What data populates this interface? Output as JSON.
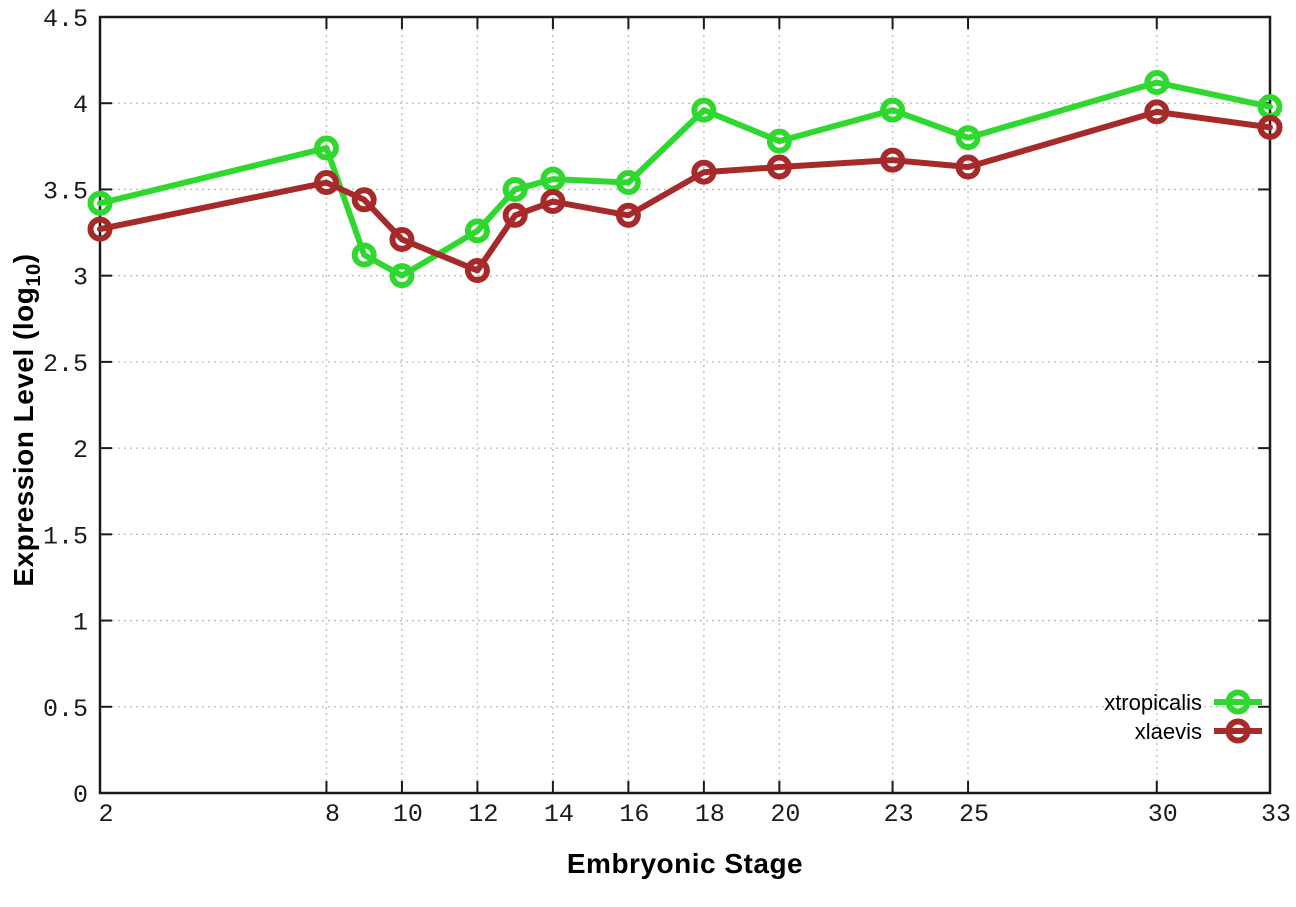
{
  "figure": {
    "background": "#ffffff",
    "border_color": "#1a1a1a",
    "grid_color": "#bcbcbc",
    "tick_label_color": "#1a1a1a"
  },
  "chart_data": {
    "type": "line",
    "title": "",
    "xlabel": "Embryonic Stage",
    "ylabel": "Expression Level (log10)",
    "ylabel_parts": {
      "pre": "Expression Level (log",
      "sub": "10",
      "post": ")"
    },
    "x": [
      2,
      8,
      9,
      10,
      12,
      13,
      14,
      16,
      18,
      20,
      23,
      25,
      30,
      33
    ],
    "xlim": [
      2,
      33
    ],
    "ylim": [
      0,
      4.5
    ],
    "x_ticks": [
      2,
      8,
      10,
      12,
      14,
      16,
      18,
      20,
      23,
      25,
      30,
      33
    ],
    "x_tick_labels": [
      "2",
      "8",
      "10",
      "12",
      "14",
      "16",
      "18",
      "20",
      "23",
      "25",
      "30",
      "33"
    ],
    "y_ticks": [
      0,
      0.5,
      1,
      1.5,
      2,
      2.5,
      3,
      3.5,
      4,
      4.5
    ],
    "y_tick_labels": [
      "0",
      "0.5",
      "1",
      "1.5",
      "2",
      "2.5",
      "3",
      "3.5",
      "4",
      "4.5"
    ],
    "grid": true,
    "legend_position": "right-inside",
    "marker": "open-circle",
    "series": [
      {
        "name": "xtropicalis",
        "color": "#2fd82f",
        "values": [
          3.42,
          3.74,
          3.12,
          3.0,
          3.26,
          3.5,
          3.56,
          3.54,
          3.96,
          3.78,
          3.96,
          3.8,
          4.12,
          3.98
        ]
      },
      {
        "name": "xlaevis",
        "color": "#a62a2a",
        "values": [
          3.27,
          3.54,
          3.44,
          3.21,
          3.03,
          3.35,
          3.43,
          3.35,
          3.6,
          3.63,
          3.67,
          3.63,
          3.95,
          3.86
        ]
      }
    ]
  }
}
